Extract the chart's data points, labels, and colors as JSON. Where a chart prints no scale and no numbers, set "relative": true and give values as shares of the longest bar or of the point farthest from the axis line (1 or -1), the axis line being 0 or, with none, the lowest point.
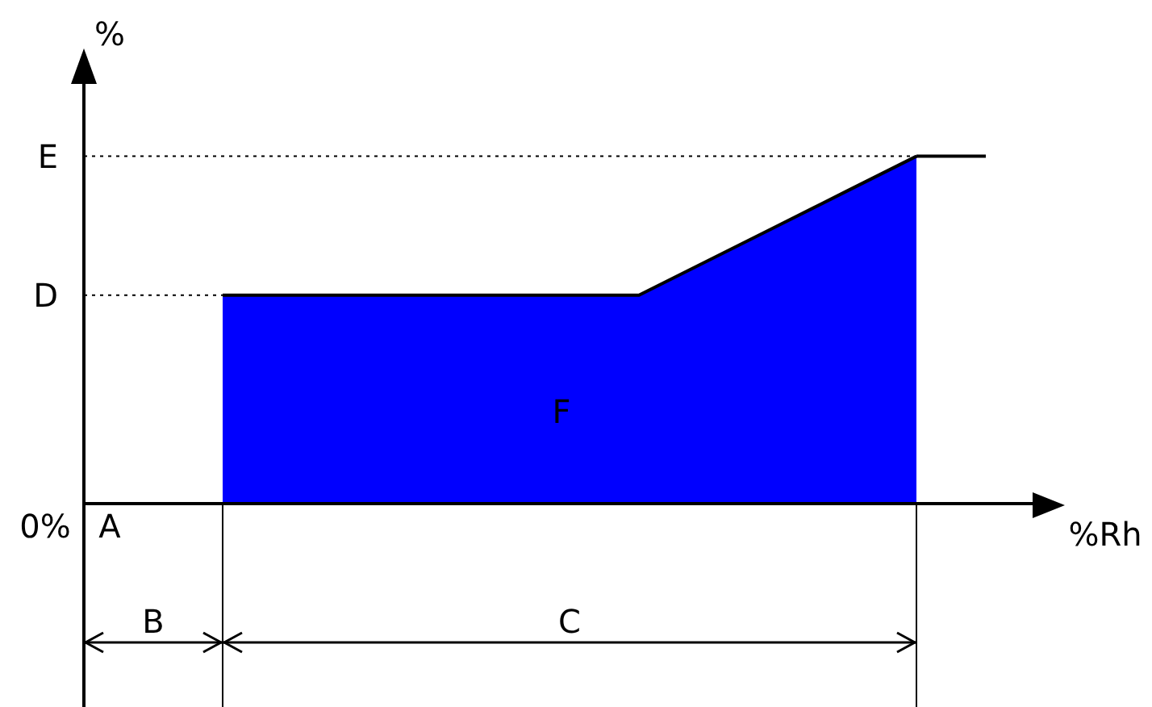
{
  "chart_data": {
    "type": "area",
    "relative": true,
    "xlabel": "%Rh",
    "ylabel": "%",
    "categories": [
      null,
      null,
      null,
      null,
      null,
      null,
      null,
      null,
      null,
      null,
      null,
      null,
      null,
      null
    ],
    "series": [
      {
        "color": "#0000ff",
        "values": [
          null,
          null,
          0.6,
          0.6,
          0.6,
          0.6,
          0.6,
          0.6,
          0.6,
          0.7,
          0.8,
          0.9,
          1,
          null
        ]
      },
      {
        "type": "line",
        "color": "#000000",
        "values": [
          null,
          null,
          null,
          null,
          null,
          null,
          null,
          null,
          null,
          null,
          null,
          null,
          1,
          1
        ]
      }
    ],
    "ref_lines": [
      {
        "axis": "y",
        "value": 0.6,
        "label": "D",
        "line_style": "dotted"
      },
      {
        "axis": "y",
        "value": 1,
        "label": "E",
        "line_style": "dotted"
      }
    ],
    "annotations": [
      "0%",
      "A",
      "B",
      "C",
      "F"
    ],
    "legend": false,
    "grid": false
  }
}
